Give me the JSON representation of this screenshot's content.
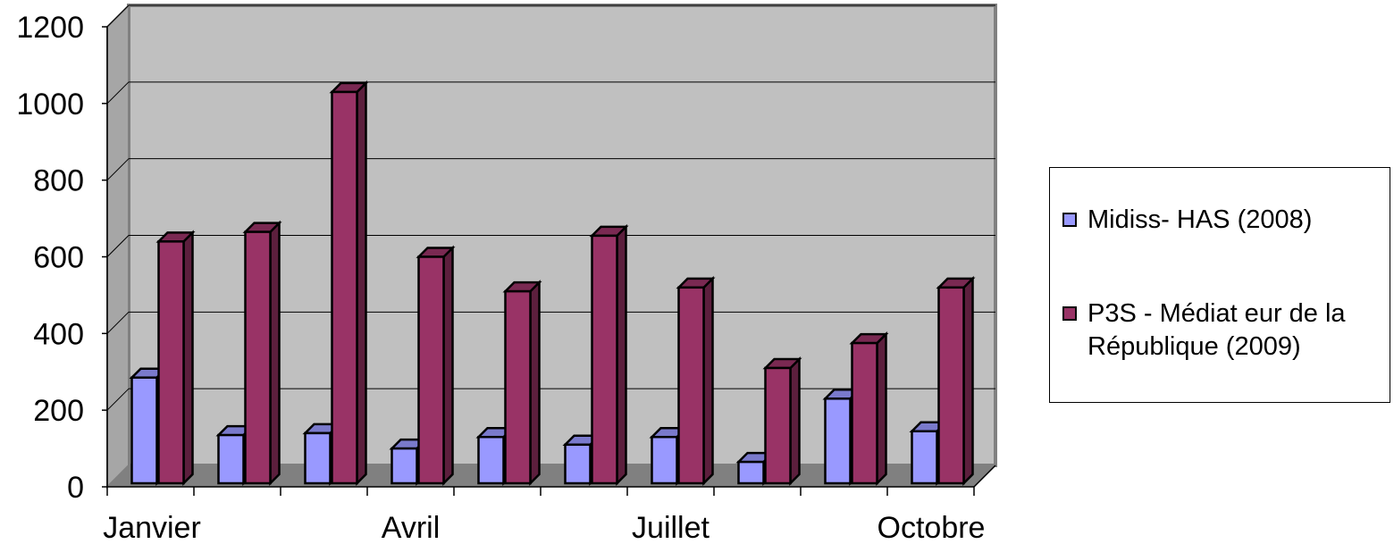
{
  "chart_data": {
    "type": "bar",
    "categories": [
      "Janvier",
      "",
      "",
      "Avril",
      "",
      "",
      "Juillet",
      "",
      "",
      "Octobre"
    ],
    "x_tick_labels": [
      "Janvier",
      "Avril",
      "Juillet",
      "Octobre"
    ],
    "series": [
      {
        "name": "Midiss- HAS (2008)",
        "color": "#9999ff",
        "values": [
          285,
          135,
          140,
          100,
          130,
          110,
          130,
          65,
          230,
          145
        ]
      },
      {
        "name": "P3S - Médiat eur de la\nRépublique (2009)",
        "color": "#993366",
        "values": [
          640,
          665,
          1030,
          600,
          510,
          655,
          520,
          310,
          375,
          520
        ]
      }
    ],
    "y_ticks": [
      "0",
      "200",
      "400",
      "600",
      "800",
      "1000",
      "1200"
    ],
    "ylim": [
      0,
      1200
    ],
    "grid": true,
    "legend_position": "right",
    "wall_color": "#c0c0c0",
    "floor_color": "#808080"
  }
}
